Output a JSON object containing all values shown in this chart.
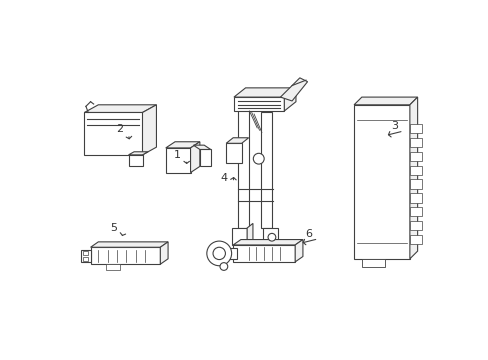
{
  "background_color": "#ffffff",
  "line_color": "#404040",
  "label_color": "#333333",
  "figsize": [
    4.89,
    3.6
  ],
  "dpi": 100,
  "lw": 0.8
}
